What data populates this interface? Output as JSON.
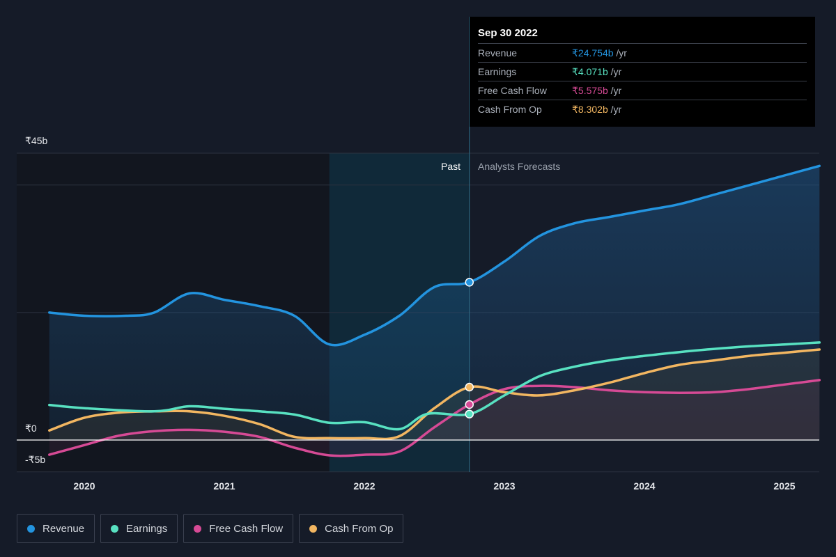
{
  "tooltip": {
    "date": "Sep 30 2022",
    "rows": [
      {
        "label": "Revenue",
        "value": "₹24.754b",
        "unit": " /yr",
        "color": "#2394df"
      },
      {
        "label": "Earnings",
        "value": "₹4.071b",
        "unit": " /yr",
        "color": "#58e1c1"
      },
      {
        "label": "Free Cash Flow",
        "value": "₹5.575b",
        "unit": " /yr",
        "color": "#d64a95"
      },
      {
        "label": "Cash From Op",
        "value": "₹8.302b",
        "unit": " /yr",
        "color": "#f2b661"
      }
    ]
  },
  "chart_data": {
    "type": "line",
    "past_label": "Past",
    "forecast_label": "Analysts Forecasts",
    "y_tick_labels": [
      "₹45b",
      "₹0",
      "-₹5b"
    ],
    "ylim": [
      -5,
      45
    ],
    "xlim": [
      2019.7,
      2025.25
    ],
    "x_ticks": [
      2020,
      2021,
      2022,
      2023,
      2024,
      2025
    ],
    "highlight_range": [
      2021.75,
      2022.75
    ],
    "past_end": 2022.75,
    "grid": true,
    "legend_position": "bottom-left",
    "series": [
      {
        "name": "Revenue",
        "color": "#2394df",
        "points": [
          [
            2019.75,
            20.0
          ],
          [
            2020.0,
            19.5
          ],
          [
            2020.3,
            19.5
          ],
          [
            2020.5,
            20.0
          ],
          [
            2020.75,
            23.0
          ],
          [
            2021.0,
            22.0
          ],
          [
            2021.25,
            21.0
          ],
          [
            2021.5,
            19.5
          ],
          [
            2021.75,
            15.0
          ],
          [
            2022.0,
            16.5
          ],
          [
            2022.25,
            19.5
          ],
          [
            2022.5,
            24.0
          ],
          [
            2022.75,
            24.754
          ],
          [
            2023.0,
            28.0
          ],
          [
            2023.25,
            32.0
          ],
          [
            2023.5,
            34.0
          ],
          [
            2023.75,
            35.0
          ],
          [
            2024.0,
            36.0
          ],
          [
            2024.25,
            37.0
          ],
          [
            2024.5,
            38.5
          ],
          [
            2024.75,
            40.0
          ],
          [
            2025.0,
            41.5
          ],
          [
            2025.25,
            43.0
          ]
        ]
      },
      {
        "name": "Earnings",
        "color": "#58e1c1",
        "points": [
          [
            2019.75,
            5.5
          ],
          [
            2020.0,
            5.0
          ],
          [
            2020.5,
            4.5
          ],
          [
            2020.75,
            5.3
          ],
          [
            2021.0,
            4.9
          ],
          [
            2021.25,
            4.5
          ],
          [
            2021.5,
            4.0
          ],
          [
            2021.75,
            2.7
          ],
          [
            2022.0,
            2.8
          ],
          [
            2022.25,
            1.7
          ],
          [
            2022.45,
            4.1
          ],
          [
            2022.75,
            4.071
          ],
          [
            2023.0,
            7.0
          ],
          [
            2023.25,
            10.0
          ],
          [
            2023.5,
            11.5
          ],
          [
            2023.75,
            12.5
          ],
          [
            2024.0,
            13.2
          ],
          [
            2024.25,
            13.8
          ],
          [
            2024.5,
            14.3
          ],
          [
            2024.75,
            14.7
          ],
          [
            2025.0,
            15.0
          ],
          [
            2025.25,
            15.3
          ]
        ]
      },
      {
        "name": "Free Cash Flow",
        "color": "#d64a95",
        "points": [
          [
            2019.75,
            -2.3
          ],
          [
            2020.0,
            -0.8
          ],
          [
            2020.25,
            0.7
          ],
          [
            2020.5,
            1.4
          ],
          [
            2020.75,
            1.6
          ],
          [
            2021.0,
            1.3
          ],
          [
            2021.25,
            0.5
          ],
          [
            2021.5,
            -1.2
          ],
          [
            2021.75,
            -2.4
          ],
          [
            2022.0,
            -2.3
          ],
          [
            2022.25,
            -1.8
          ],
          [
            2022.5,
            2.0
          ],
          [
            2022.75,
            5.575
          ],
          [
            2023.0,
            8.0
          ],
          [
            2023.25,
            8.5
          ],
          [
            2023.5,
            8.3
          ],
          [
            2023.75,
            7.8
          ],
          [
            2024.0,
            7.5
          ],
          [
            2024.25,
            7.4
          ],
          [
            2024.5,
            7.5
          ],
          [
            2024.75,
            8.0
          ],
          [
            2025.0,
            8.7
          ],
          [
            2025.25,
            9.4
          ]
        ]
      },
      {
        "name": "Cash From Op",
        "color": "#f2b661",
        "points": [
          [
            2019.75,
            1.5
          ],
          [
            2020.0,
            3.5
          ],
          [
            2020.25,
            4.3
          ],
          [
            2020.5,
            4.5
          ],
          [
            2020.75,
            4.5
          ],
          [
            2021.0,
            3.8
          ],
          [
            2021.25,
            2.5
          ],
          [
            2021.5,
            0.5
          ],
          [
            2021.75,
            0.3
          ],
          [
            2022.0,
            0.3
          ],
          [
            2022.25,
            0.6
          ],
          [
            2022.5,
            5.0
          ],
          [
            2022.75,
            8.302
          ],
          [
            2023.0,
            7.5
          ],
          [
            2023.25,
            7.0
          ],
          [
            2023.5,
            7.8
          ],
          [
            2023.75,
            9.0
          ],
          [
            2024.0,
            10.5
          ],
          [
            2024.25,
            11.8
          ],
          [
            2024.5,
            12.5
          ],
          [
            2024.75,
            13.2
          ],
          [
            2025.0,
            13.7
          ],
          [
            2025.25,
            14.2
          ]
        ]
      }
    ]
  }
}
